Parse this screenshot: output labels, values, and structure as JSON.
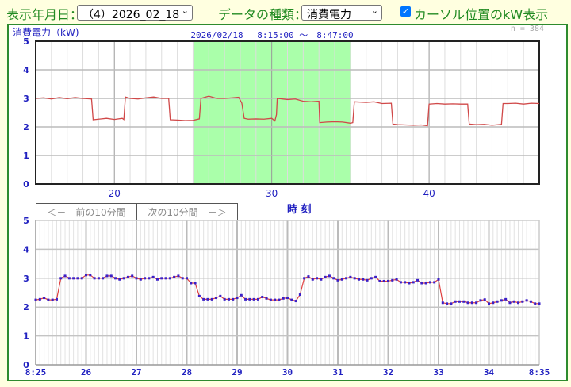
{
  "controls": {
    "date_label": "表示年月日：",
    "date_value": "（4）2026_02_18",
    "type_label": "データの種類：",
    "type_value": "消費電力",
    "cursor_checkbox_checked": true,
    "cursor_checkbox_label": "カーソル位置のkW表示",
    "chevron_icon": "chevron-down-icon"
  },
  "nav": {
    "prev_label": "＜－　前の10分間",
    "next_label": "次の10分間　－＞"
  },
  "colors": {
    "accent_green": "#2e8b2e",
    "line": "#e04040",
    "marker": "#3a20c8",
    "highlight": "#aaffaa",
    "axis_text": "#2020c0"
  },
  "chart_data": [
    {
      "type": "line",
      "ylabel": "消費電力（kW)",
      "title": "2026/02/18　 8:15:00 ～　8:47:00",
      "count_label": "n = 384",
      "xlim": [
        15,
        47
      ],
      "ylim": [
        0,
        5
      ],
      "yticks": [
        "0",
        "1",
        "2",
        "3",
        "4",
        "5"
      ],
      "xticks": [
        {
          "v": 20,
          "label": "20"
        },
        {
          "v": 30,
          "label": "30"
        },
        {
          "v": 40,
          "label": "40"
        }
      ],
      "highlight_range": [
        25,
        35
      ],
      "grid": true,
      "points": [
        [
          15,
          3.0
        ],
        [
          15.5,
          3.02
        ],
        [
          16,
          2.98
        ],
        [
          16.5,
          3.03
        ],
        [
          17,
          2.99
        ],
        [
          17.5,
          3.03
        ],
        [
          18,
          3.0
        ],
        [
          18.55,
          2.98
        ],
        [
          18.65,
          2.25
        ],
        [
          19,
          2.27
        ],
        [
          19.5,
          2.3
        ],
        [
          20,
          2.26
        ],
        [
          20.5,
          2.3
        ],
        [
          20.6,
          2.26
        ],
        [
          20.7,
          3.05
        ],
        [
          21,
          3.0
        ],
        [
          21.5,
          2.98
        ],
        [
          22,
          3.02
        ],
        [
          22.5,
          3.05
        ],
        [
          23,
          3.0
        ],
        [
          23.45,
          3.0
        ],
        [
          23.55,
          2.25
        ],
        [
          24,
          2.24
        ],
        [
          24.5,
          2.22
        ],
        [
          25,
          2.23
        ],
        [
          25.4,
          2.28
        ],
        [
          25.5,
          3.0
        ],
        [
          26,
          3.08
        ],
        [
          26.5,
          3.0
        ],
        [
          27,
          3.0
        ],
        [
          27.5,
          3.02
        ],
        [
          27.9,
          3.04
        ],
        [
          28.1,
          2.83
        ],
        [
          28.25,
          2.3
        ],
        [
          28.5,
          2.27
        ],
        [
          29,
          2.28
        ],
        [
          29.5,
          2.27
        ],
        [
          30,
          2.3
        ],
        [
          30.2,
          2.21
        ],
        [
          30.3,
          2.43
        ],
        [
          30.35,
          3.0
        ],
        [
          31,
          2.96
        ],
        [
          31.5,
          2.98
        ],
        [
          32,
          2.9
        ],
        [
          32.5,
          2.88
        ],
        [
          33,
          2.9
        ],
        [
          33.05,
          2.15
        ],
        [
          33.5,
          2.17
        ],
        [
          34,
          2.18
        ],
        [
          34.5,
          2.17
        ],
        [
          35,
          2.13
        ],
        [
          35.15,
          2.15
        ],
        [
          35.25,
          2.88
        ],
        [
          36,
          2.86
        ],
        [
          36.5,
          2.88
        ],
        [
          37,
          2.82
        ],
        [
          37.6,
          2.83
        ],
        [
          37.7,
          2.1
        ],
        [
          38,
          2.08
        ],
        [
          38.5,
          2.07
        ],
        [
          39,
          2.06
        ],
        [
          39.5,
          2.07
        ],
        [
          39.9,
          2.04
        ],
        [
          40,
          2.8
        ],
        [
          40.5,
          2.82
        ],
        [
          41,
          2.8
        ],
        [
          41.5,
          2.81
        ],
        [
          42,
          2.8
        ],
        [
          42.45,
          2.8
        ],
        [
          42.55,
          2.1
        ],
        [
          43,
          2.08
        ],
        [
          43.5,
          2.09
        ],
        [
          44,
          2.06
        ],
        [
          44.6,
          2.09
        ],
        [
          44.7,
          2.82
        ],
        [
          45,
          2.82
        ],
        [
          45.5,
          2.83
        ],
        [
          46,
          2.8
        ],
        [
          46.5,
          2.83
        ],
        [
          47,
          2.82
        ]
      ]
    },
    {
      "type": "line",
      "xlabel": "時 刻",
      "xlim": [
        "8:25",
        "8:35"
      ],
      "ylim": [
        0,
        5
      ],
      "yticks": [
        "0",
        "1",
        "2",
        "3",
        "4",
        "5"
      ],
      "xticks": [
        "8:25",
        "26",
        "27",
        "28",
        "29",
        "30",
        "31",
        "32",
        "33",
        "34",
        "8:35"
      ],
      "interval_seconds": 5,
      "grid": true,
      "values": [
        2.25,
        2.27,
        2.32,
        2.25,
        2.25,
        2.27,
        3.0,
        3.08,
        3.0,
        3.0,
        3.0,
        3.0,
        3.11,
        3.11,
        3.0,
        3.0,
        3.0,
        3.08,
        3.08,
        3.0,
        2.96,
        3.0,
        3.04,
        3.08,
        3.0,
        2.96,
        3.0,
        3.0,
        3.04,
        2.96,
        3.0,
        3.0,
        3.0,
        3.04,
        3.08,
        3.0,
        3.0,
        2.83,
        2.83,
        2.38,
        2.27,
        2.27,
        2.27,
        2.32,
        2.38,
        2.27,
        2.27,
        2.27,
        2.32,
        2.41,
        2.27,
        2.27,
        2.27,
        2.27,
        2.35,
        2.3,
        2.25,
        2.25,
        2.25,
        2.3,
        2.32,
        2.25,
        2.21,
        2.43,
        3.0,
        3.06,
        2.96,
        3.0,
        2.96,
        3.04,
        3.08,
        3.0,
        2.93,
        2.96,
        3.0,
        3.04,
        3.0,
        2.96,
        2.96,
        2.93,
        3.0,
        3.04,
        2.9,
        2.9,
        2.9,
        2.93,
        2.96,
        2.86,
        2.86,
        2.83,
        2.86,
        2.93,
        2.83,
        2.83,
        2.86,
        2.86,
        2.96,
        2.15,
        2.12,
        2.12,
        2.19,
        2.19,
        2.19,
        2.15,
        2.15,
        2.15,
        2.23,
        2.26,
        2.12,
        2.15,
        2.19,
        2.23,
        2.27,
        2.15,
        2.19,
        2.15,
        2.19,
        2.23,
        2.19,
        2.12,
        2.12
      ]
    }
  ]
}
